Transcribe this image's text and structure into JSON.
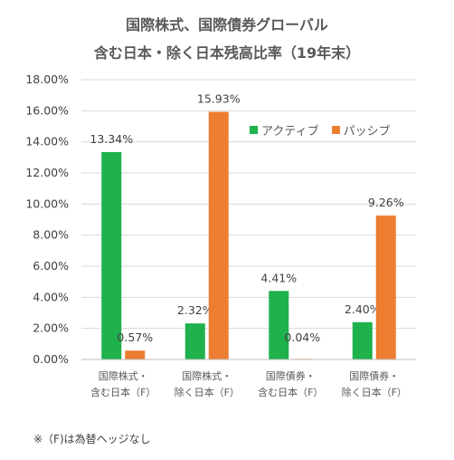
{
  "chart_data": {
    "type": "bar",
    "title_line1": "国際株式、国際債券グローバル",
    "title_line2": "含む日本・除く日本残高比率（19年末）",
    "categories": [
      [
        "国際株式・",
        "含む日本（F）"
      ],
      [
        "国際株式・",
        "除く日本（F）"
      ],
      [
        "国際債券・",
        "含む日本（F）"
      ],
      [
        "国際債券・",
        "除く日本（F）"
      ]
    ],
    "series": [
      {
        "name": "アクティブ",
        "color": "#1fb14c",
        "values": [
          13.34,
          2.32,
          4.41,
          2.4
        ],
        "labels": [
          "13.34%",
          "2.32%",
          "4.41%",
          "2.40%"
        ]
      },
      {
        "name": "パッシブ",
        "color": "#ed7d31",
        "values": [
          0.57,
          15.93,
          0.04,
          9.26
        ],
        "labels": [
          "0.57%",
          "15.93%",
          "0.04%",
          "9.26%"
        ]
      }
    ],
    "ylim": [
      0,
      18
    ],
    "yticks": [
      "0.00%",
      "2.00%",
      "4.00%",
      "6.00%",
      "8.00%",
      "10.00%",
      "12.00%",
      "14.00%",
      "16.00%",
      "18.00%"
    ],
    "grid": true,
    "legend_position": "top-right"
  },
  "footnote": "※（F)は為替ヘッジなし"
}
